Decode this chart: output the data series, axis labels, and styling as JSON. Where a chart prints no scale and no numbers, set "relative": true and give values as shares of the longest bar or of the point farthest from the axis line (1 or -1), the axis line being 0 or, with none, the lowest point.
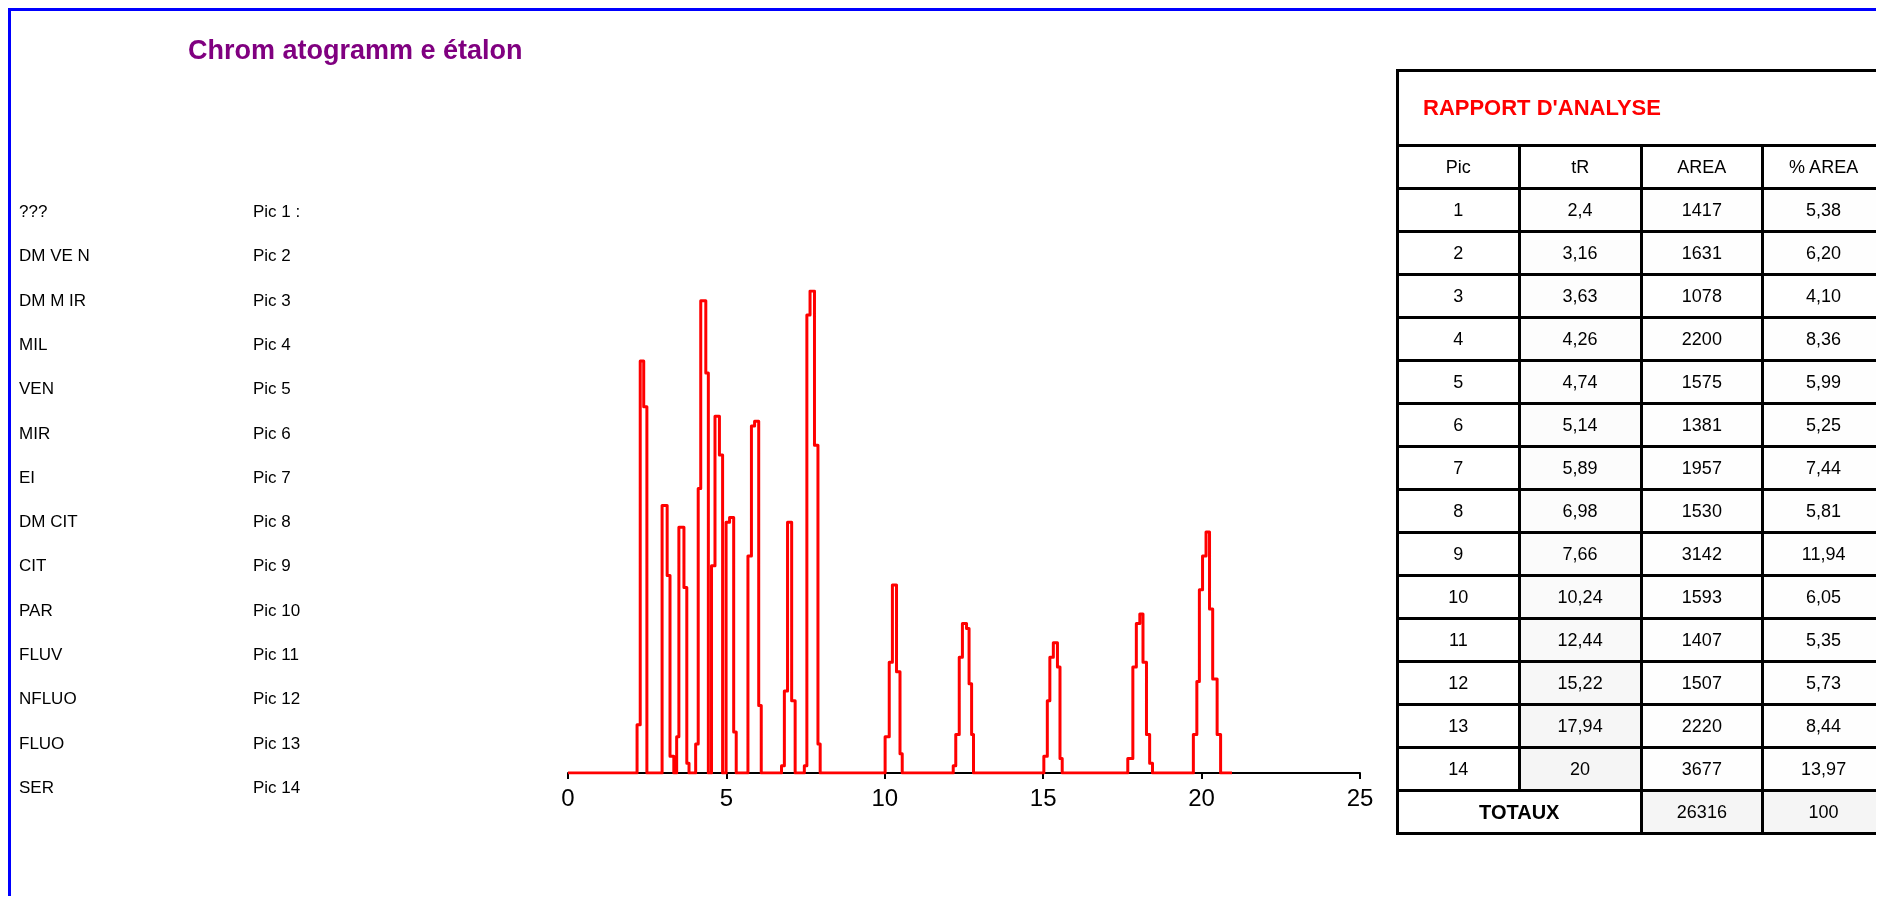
{
  "chart_data": [
    {
      "type": "step",
      "title": "Chrom atogramm e étalon",
      "relative": true,
      "xlim": [
        0,
        25
      ],
      "xticks": [
        0,
        5,
        10,
        15,
        20,
        25
      ],
      "annotations": [
        "???",
        "Pic 1 :",
        "DM VE N",
        "Pic 2",
        "DM M IR",
        "Pic 3",
        "MIL",
        "Pic 4",
        "VEN",
        "Pic 5",
        "MIR",
        "Pic 6",
        "EI",
        "Pic 7",
        "DM CIT",
        "Pic 8",
        "CIT",
        "Pic 9",
        "PAR",
        "Pic 10",
        "FLUV",
        "Pic 11",
        "NFLUO",
        "Pic 12",
        "FLUO",
        "Pic 13",
        "SER",
        "Pic 14"
      ],
      "series": [
        {
          "color": "#ff0000",
          "x": [
            0,
            2.18,
            2.28,
            2.39,
            2.49,
            2.97,
            3.13,
            3.22,
            3.34,
            3.43,
            3.5,
            3.66,
            3.75,
            3.82,
            4.03,
            4.11,
            4.19,
            4.35,
            4.43,
            4.53,
            4.64,
            4.78,
            4.88,
            4.99,
            5.1,
            5.23,
            5.31,
            5.68,
            5.79,
            5.89,
            6.02,
            6.1,
            6.74,
            6.83,
            6.93,
            7.06,
            7.17,
            7.46,
            7.54,
            7.64,
            7.78,
            7.89,
            7.96,
            10.01,
            10.14,
            10.24,
            10.37,
            10.48,
            10.55,
            12.16,
            12.24,
            12.35,
            12.45,
            12.58,
            12.66,
            12.74,
            12.8,
            15.02,
            15.13,
            15.21,
            15.32,
            15.45,
            15.53,
            15.6,
            17.67,
            17.83,
            17.94,
            18.05,
            18.15,
            18.26,
            18.36,
            18.45,
            19.74,
            19.85,
            19.93,
            20.03,
            20.14,
            20.25,
            20.35,
            20.49,
            20.6,
            20.96
          ],
          "values": [
            0,
            0.1,
            0.855,
            0.76,
            0,
            0.555,
            0.41,
            0.035,
            0,
            0.075,
            0.51,
            0.385,
            0.02,
            0,
            0.06,
            0.59,
            0.98,
            0.83,
            0,
            0.43,
            0.74,
            0.66,
            0,
            0.52,
            0.53,
            0.085,
            0,
            0.45,
            0.72,
            0.73,
            0.14,
            0,
            0.015,
            0.17,
            0.52,
            0.15,
            0,
            0.015,
            0.95,
            1,
            0.68,
            0.06,
            0,
            0.075,
            0.23,
            0.39,
            0.21,
            0.04,
            0,
            0.015,
            0.08,
            0.24,
            0.31,
            0.3,
            0.185,
            0.08,
            0,
            0.035,
            0.15,
            0.24,
            0.27,
            0.22,
            0.03,
            0,
            0.03,
            0.22,
            0.31,
            0.33,
            0.23,
            0.08,
            0.02,
            0,
            0.08,
            0.19,
            0.38,
            0.45,
            0.5,
            0.34,
            0.195,
            0.08,
            0,
            0
          ]
        }
      ]
    },
    {
      "type": "heatmap",
      "title": "RAPPORT D'ANALYSE",
      "ylabel": "Pic",
      "categories": [
        "tR",
        "AREA",
        "% AREA"
      ],
      "y_categories": [
        "1",
        "2",
        "3",
        "4",
        "5",
        "6",
        "7",
        "8",
        "9",
        "10",
        "11",
        "12",
        "13",
        "14",
        "TOTAUX"
      ],
      "cells": [
        [
          2.4,
          1417,
          5.38
        ],
        [
          3.16,
          1631,
          6.2
        ],
        [
          3.63,
          1078,
          4.1
        ],
        [
          4.26,
          2200,
          8.36
        ],
        [
          4.74,
          1575,
          5.99
        ],
        [
          5.14,
          1381,
          5.25
        ],
        [
          5.89,
          1957,
          7.44
        ],
        [
          6.98,
          1530,
          5.81
        ],
        [
          7.66,
          3142,
          11.94
        ],
        [
          10.24,
          1593,
          6.05
        ],
        [
          12.44,
          1407,
          5.35
        ],
        [
          15.22,
          1507,
          5.73
        ],
        [
          17.94,
          2220,
          8.44
        ],
        [
          20,
          3677,
          13.97
        ],
        [
          null,
          26316,
          100
        ]
      ],
      "cell_labels": [
        [
          "2,4",
          "1417",
          "5,38"
        ],
        [
          "3,16",
          "1631",
          "6,20"
        ],
        [
          "3,63",
          "1078",
          "4,10"
        ],
        [
          "4,26",
          "2200",
          "8,36"
        ],
        [
          "4,74",
          "1575",
          "5,99"
        ],
        [
          "5,14",
          "1381",
          "5,25"
        ],
        [
          "5,89",
          "1957",
          "7,44"
        ],
        [
          "6,98",
          "1530",
          "5,81"
        ],
        [
          "7,66",
          "3142",
          "11,94"
        ],
        [
          "10,24",
          "1593",
          "6,05"
        ],
        [
          "12,44",
          "1407",
          "5,35"
        ],
        [
          "15,22",
          "1507",
          "5,73"
        ],
        [
          "17,94",
          "2220",
          "8,44"
        ],
        [
          "20",
          "3677",
          "13,97"
        ],
        [
          null,
          "26316",
          "100"
        ]
      ]
    }
  ]
}
